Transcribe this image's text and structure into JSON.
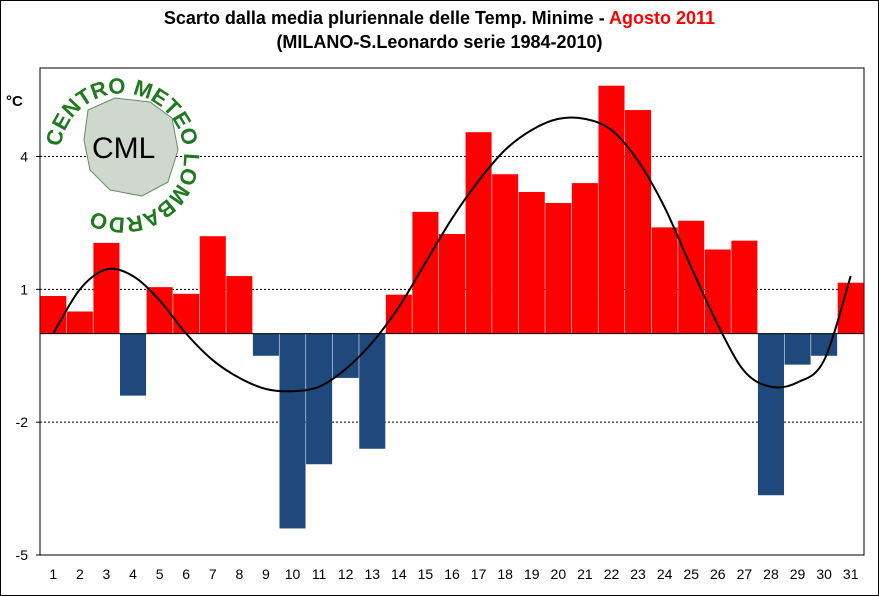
{
  "title": {
    "line1_prefix": "Scarto dalla media pluriennale delle Temp. Minime - ",
    "line1_accent": "Agosto 2011",
    "line2": "(MILANO-S.Leonardo serie 1984-2010)"
  },
  "colors": {
    "positive": "#ff0000",
    "negative": "#1f497d",
    "accent": "#ff0000",
    "curve": "#000000"
  },
  "logo": {
    "ring_text": "CENTRO METEO LOMBARDO",
    "center_text": "CML"
  },
  "chart_data": {
    "type": "bar",
    "title": "Scarto dalla media pluriennale delle Temp. Minime - Agosto 2011 (MILANO-S.Leonardo serie 1984-2010)",
    "xlabel": "",
    "ylabel": "°C",
    "unit": "°C",
    "ylim": [
      -5,
      6
    ],
    "yticks": [
      4,
      1,
      -2,
      -5
    ],
    "grid": true,
    "gridlines": [
      4,
      1,
      -2
    ],
    "categories": [
      "1",
      "2",
      "3",
      "4",
      "5",
      "6",
      "7",
      "8",
      "9",
      "10",
      "11",
      "12",
      "13",
      "14",
      "15",
      "16",
      "17",
      "18",
      "19",
      "20",
      "21",
      "22",
      "23",
      "24",
      "25",
      "26",
      "27",
      "28",
      "29",
      "30",
      "31"
    ],
    "values": [
      0.85,
      0.5,
      2.05,
      -1.4,
      1.05,
      0.9,
      2.2,
      1.3,
      -0.5,
      -4.4,
      -2.95,
      -1.0,
      -2.6,
      0.88,
      2.75,
      2.25,
      4.55,
      3.6,
      3.2,
      2.95,
      3.4,
      5.6,
      5.05,
      2.4,
      2.55,
      1.9,
      2.1,
      -3.65,
      -0.7,
      -0.5,
      1.15
    ],
    "trend": {
      "type": "polynomial",
      "x": [
        1,
        2,
        3,
        4,
        5,
        6,
        7,
        8,
        9,
        10,
        11,
        12,
        13,
        14,
        15,
        16,
        17,
        18,
        19,
        20,
        21,
        22,
        23,
        24,
        25,
        26,
        27,
        28,
        29,
        30,
        31
      ],
      "y": [
        0.0,
        1.0,
        1.45,
        1.3,
        0.75,
        0.0,
        -0.6,
        -1.0,
        -1.25,
        -1.3,
        -1.2,
        -0.8,
        -0.2,
        0.6,
        1.6,
        2.6,
        3.45,
        4.15,
        4.6,
        4.85,
        4.85,
        4.6,
        3.9,
        2.85,
        1.5,
        0.2,
        -0.85,
        -1.2,
        -1.1,
        -0.6,
        1.3
      ]
    }
  }
}
